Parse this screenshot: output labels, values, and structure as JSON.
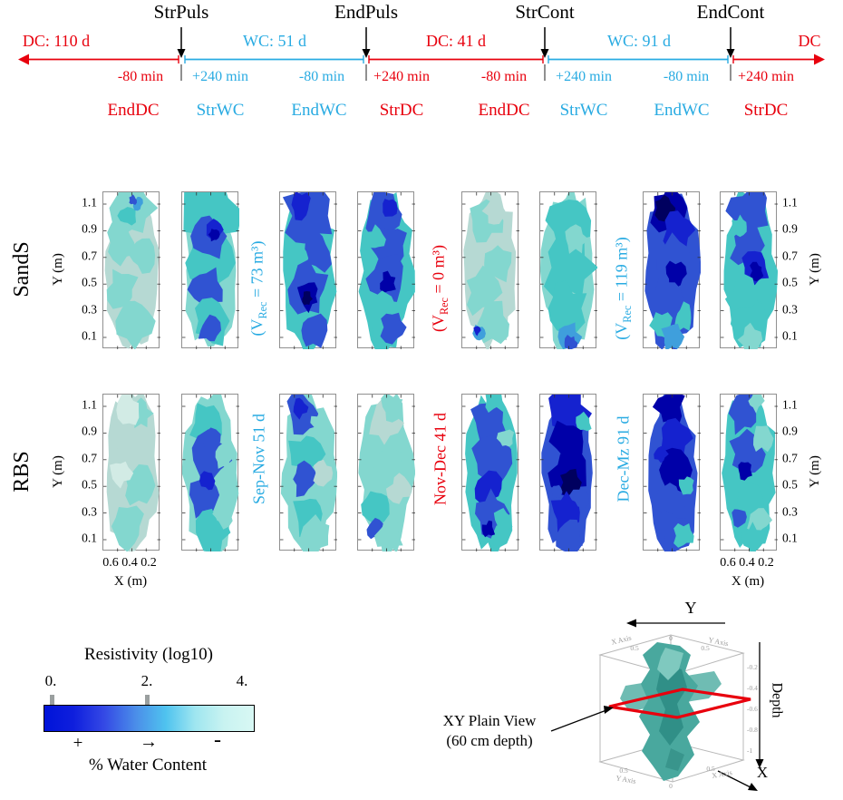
{
  "colors": {
    "red": "#e8000d",
    "cyan": "#29abe2",
    "black": "#000000",
    "palette": [
      "#00005f",
      "#0000a8",
      "#1522cf",
      "#3053d2",
      "#3f9fdc",
      "#45c6c4",
      "#83d7cf",
      "#b6d9d3",
      "#d2ebe5"
    ]
  },
  "timeline": {
    "events": [
      "StrPuls",
      "EndPuls",
      "StrCont",
      "EndCont"
    ],
    "periods": [
      {
        "label": "DC: 110 d",
        "color": "red"
      },
      {
        "label": "WC: 51 d",
        "color": "cyan"
      },
      {
        "label": "DC: 41 d",
        "color": "red"
      },
      {
        "label": "WC: 91 d",
        "color": "cyan"
      },
      {
        "label": "DC",
        "color": "red"
      }
    ],
    "offsets": [
      {
        "label": "-80 min",
        "color": "red"
      },
      {
        "label": "+240 min",
        "color": "cyan"
      },
      {
        "label": "-80 min",
        "color": "cyan"
      },
      {
        "label": "+240 min",
        "color": "red"
      },
      {
        "label": "-80 min",
        "color": "red"
      },
      {
        "label": "+240 min",
        "color": "cyan"
      },
      {
        "label": "-80 min",
        "color": "cyan"
      },
      {
        "label": "+240 min",
        "color": "red"
      }
    ],
    "states": [
      {
        "label": "EndDC",
        "color": "red"
      },
      {
        "label": "StrWC",
        "color": "cyan"
      },
      {
        "label": "EndWC",
        "color": "cyan"
      },
      {
        "label": "StrDC",
        "color": "red"
      },
      {
        "label": "EndDC",
        "color": "red"
      },
      {
        "label": "StrWC",
        "color": "cyan"
      },
      {
        "label": "EndWC",
        "color": "cyan"
      },
      {
        "label": "StrDC",
        "color": "red"
      }
    ]
  },
  "rows": [
    "SandS",
    "RBS"
  ],
  "axes": {
    "y_label": "Y (m)",
    "y_ticks": [
      "1.1",
      "0.9",
      "0.7",
      "0.5",
      "0.3",
      "0.1"
    ],
    "x_label": "X (m)",
    "x_ticks": [
      "0.6",
      "0.4",
      "0.2"
    ]
  },
  "annotations": [
    {
      "vrec_open": "(V",
      "vrec_sub": "Rec",
      "vrec_rest": " = 73 m³)",
      "period": "Sep-Nov 51 d",
      "color": "cyan"
    },
    {
      "vrec_open": "(V",
      "vrec_sub": "Rec",
      "vrec_rest": " = 0 m³)",
      "period": "Nov-Dec 41 d",
      "color": "red"
    },
    {
      "vrec_open": "(V",
      "vrec_sub": "Rec",
      "vrec_rest": " = 119 m³)",
      "period": "Dec-Mz 91 d",
      "color": "cyan"
    }
  ],
  "colorbar": {
    "title": "Resistivity (log10)",
    "ticks": [
      "0.",
      "2.",
      "4."
    ],
    "plus": "+",
    "arrow": "→",
    "minus": "-",
    "footer": "% Water Content"
  },
  "inset3d": {
    "y_axis": "Y",
    "x_axis": "X",
    "depth": "Depth",
    "view_line1": "XY Plain View",
    "view_line2": "(60 cm depth)",
    "mini_axis_labels": [
      "X Axis",
      "Y Axis",
      "Y Axis",
      "X Axis"
    ],
    "mini_ticks_top": [
      "0.5",
      "0",
      "0.5"
    ],
    "mini_ticks_right": [
      "-0.2",
      "-0.4",
      "-0.6",
      "-0.8",
      "-1"
    ],
    "mini_ticks_bottom": [
      "0.5",
      "0",
      "0.5"
    ]
  },
  "chart_data": {
    "type": "contour-grid",
    "rows": [
      "SandS",
      "RBS"
    ],
    "column_states": [
      "EndDC",
      "StrWC",
      "EndWC",
      "StrDC",
      "EndDC",
      "StrWC",
      "EndWC",
      "StrDC"
    ],
    "column_offsets": [
      "-80 min",
      "+240 min",
      "-80 min",
      "+240 min",
      "-80 min",
      "+240 min",
      "-80 min",
      "+240 min"
    ],
    "x_range_m": [
      0.2,
      0.6
    ],
    "y_range_m": [
      0.1,
      1.1
    ],
    "colorbar_label": "Resistivity (log10)",
    "colorbar_range_log10": [
      0,
      4
    ],
    "recovered_volumes_m3": [
      73,
      0,
      119
    ],
    "period_days": {
      "DC1": 110,
      "WC1": 51,
      "DC2": 41,
      "WC2": 91
    },
    "panels": [
      {
        "base": 7,
        "patches": [
          [
            0.5,
            0.1,
            0.4,
            6
          ],
          [
            0.3,
            0.32,
            0.26,
            6
          ],
          [
            0.68,
            0.4,
            0.22,
            6
          ],
          [
            0.32,
            0.62,
            0.26,
            6
          ],
          [
            0.55,
            0.82,
            0.3,
            6
          ],
          [
            0.42,
            0.15,
            0.14,
            5
          ],
          [
            0.6,
            0.07,
            0.09,
            4
          ],
          [
            0.52,
            0.05,
            0.06,
            3
          ]
        ]
      },
      {
        "base": 6,
        "patches": [
          [
            0.5,
            0.12,
            0.42,
            5
          ],
          [
            0.5,
            0.45,
            0.45,
            5
          ],
          [
            0.48,
            0.28,
            0.3,
            3
          ],
          [
            0.55,
            0.24,
            0.16,
            2
          ],
          [
            0.56,
            0.27,
            0.09,
            1
          ],
          [
            0.42,
            0.62,
            0.28,
            3
          ],
          [
            0.52,
            0.82,
            0.3,
            5
          ],
          [
            0.48,
            0.88,
            0.18,
            3
          ]
        ]
      },
      {
        "base": 5,
        "patches": [
          [
            0.48,
            0.15,
            0.38,
            3
          ],
          [
            0.38,
            0.08,
            0.18,
            2
          ],
          [
            0.62,
            0.38,
            0.26,
            3
          ],
          [
            0.3,
            0.42,
            0.18,
            5
          ],
          [
            0.5,
            0.62,
            0.32,
            3
          ],
          [
            0.5,
            0.66,
            0.18,
            1
          ],
          [
            0.47,
            0.68,
            0.09,
            0
          ],
          [
            0.58,
            0.88,
            0.24,
            3
          ]
        ]
      },
      {
        "base": 5,
        "patches": [
          [
            0.46,
            0.14,
            0.34,
            3
          ],
          [
            0.56,
            0.34,
            0.28,
            3
          ],
          [
            0.3,
            0.3,
            0.16,
            5
          ],
          [
            0.5,
            0.55,
            0.32,
            3
          ],
          [
            0.52,
            0.58,
            0.13,
            1
          ],
          [
            0.42,
            0.8,
            0.28,
            5
          ],
          [
            0.6,
            0.86,
            0.2,
            3
          ],
          [
            0.54,
            0.1,
            0.12,
            2
          ]
        ]
      },
      {
        "base": 7,
        "patches": [
          [
            0.42,
            0.18,
            0.28,
            6
          ],
          [
            0.62,
            0.45,
            0.24,
            6
          ],
          [
            0.36,
            0.64,
            0.28,
            6
          ],
          [
            0.52,
            0.84,
            0.28,
            6
          ],
          [
            0.3,
            0.9,
            0.12,
            4
          ],
          [
            0.26,
            0.88,
            0.06,
            2
          ],
          [
            0.55,
            0.12,
            0.16,
            7
          ]
        ]
      },
      {
        "base": 6,
        "patches": [
          [
            0.5,
            0.18,
            0.38,
            5
          ],
          [
            0.5,
            0.48,
            0.42,
            5
          ],
          [
            0.46,
            0.74,
            0.32,
            5
          ],
          [
            0.62,
            0.3,
            0.18,
            6
          ],
          [
            0.5,
            0.92,
            0.18,
            4
          ],
          [
            0.54,
            0.96,
            0.1,
            3
          ]
        ]
      },
      {
        "base": 3,
        "patches": [
          [
            0.46,
            0.1,
            0.3,
            1
          ],
          [
            0.36,
            0.1,
            0.16,
            0
          ],
          [
            0.6,
            0.24,
            0.24,
            2
          ],
          [
            0.5,
            0.42,
            0.28,
            3
          ],
          [
            0.56,
            0.52,
            0.18,
            1
          ],
          [
            0.42,
            0.68,
            0.28,
            3
          ],
          [
            0.7,
            0.8,
            0.18,
            5
          ],
          [
            0.32,
            0.85,
            0.18,
            5
          ],
          [
            0.5,
            0.92,
            0.18,
            4
          ]
        ]
      },
      {
        "base": 5,
        "patches": [
          [
            0.5,
            0.12,
            0.32,
            3
          ],
          [
            0.46,
            0.34,
            0.28,
            3
          ],
          [
            0.6,
            0.48,
            0.22,
            2
          ],
          [
            0.63,
            0.5,
            0.11,
            1
          ],
          [
            0.4,
            0.68,
            0.28,
            5
          ],
          [
            0.52,
            0.84,
            0.28,
            5
          ],
          [
            0.34,
            0.22,
            0.14,
            5
          ],
          [
            0.52,
            0.94,
            0.18,
            6
          ]
        ]
      },
      {
        "base": 7,
        "patches": [
          [
            0.5,
            0.28,
            0.32,
            7
          ],
          [
            0.62,
            0.58,
            0.26,
            6
          ],
          [
            0.42,
            0.84,
            0.28,
            6
          ],
          [
            0.66,
            0.12,
            0.18,
            6
          ],
          [
            0.3,
            0.5,
            0.18,
            8
          ],
          [
            0.45,
            0.1,
            0.2,
            8
          ]
        ]
      },
      {
        "base": 6,
        "patches": [
          [
            0.42,
            0.18,
            0.28,
            5
          ],
          [
            0.46,
            0.42,
            0.32,
            3
          ],
          [
            0.42,
            0.64,
            0.28,
            3
          ],
          [
            0.5,
            0.3,
            0.18,
            3
          ],
          [
            0.46,
            0.55,
            0.13,
            2
          ],
          [
            0.72,
            0.4,
            0.16,
            6
          ],
          [
            0.52,
            0.88,
            0.26,
            5
          ],
          [
            0.72,
            0.76,
            0.16,
            6
          ]
        ]
      },
      {
        "base": 6,
        "patches": [
          [
            0.4,
            0.12,
            0.26,
            3
          ],
          [
            0.34,
            0.08,
            0.13,
            2
          ],
          [
            0.46,
            0.38,
            0.28,
            5
          ],
          [
            0.42,
            0.54,
            0.22,
            3
          ],
          [
            0.52,
            0.76,
            0.28,
            5
          ],
          [
            0.76,
            0.5,
            0.16,
            7
          ],
          [
            0.62,
            0.9,
            0.22,
            6
          ],
          [
            0.7,
            0.18,
            0.14,
            6
          ]
        ]
      },
      {
        "base": 6,
        "patches": [
          [
            0.46,
            0.18,
            0.28,
            7
          ],
          [
            0.52,
            0.44,
            0.28,
            6
          ],
          [
            0.32,
            0.7,
            0.22,
            5
          ],
          [
            0.3,
            0.86,
            0.13,
            3
          ],
          [
            0.72,
            0.6,
            0.18,
            7
          ],
          [
            0.56,
            0.9,
            0.22,
            6
          ],
          [
            0.6,
            0.08,
            0.18,
            6
          ]
        ]
      },
      {
        "base": 5,
        "patches": [
          [
            0.46,
            0.18,
            0.32,
            3
          ],
          [
            0.52,
            0.44,
            0.32,
            3
          ],
          [
            0.46,
            0.6,
            0.22,
            2
          ],
          [
            0.5,
            0.76,
            0.26,
            3
          ],
          [
            0.46,
            0.86,
            0.1,
            1
          ],
          [
            0.76,
            0.28,
            0.13,
            6
          ],
          [
            0.72,
            0.8,
            0.15,
            5
          ],
          [
            0.55,
            0.04,
            0.14,
            5
          ]
        ]
      },
      {
        "base": 3,
        "patches": [
          [
            0.5,
            0.12,
            0.32,
            2
          ],
          [
            0.46,
            0.3,
            0.26,
            1
          ],
          [
            0.5,
            0.5,
            0.28,
            1
          ],
          [
            0.52,
            0.56,
            0.16,
            0
          ],
          [
            0.46,
            0.75,
            0.26,
            2
          ],
          [
            0.52,
            0.9,
            0.22,
            3
          ],
          [
            0.76,
            0.18,
            0.13,
            5
          ],
          [
            0.28,
            0.62,
            0.1,
            3
          ],
          [
            0.72,
            0.66,
            0.13,
            3
          ]
        ]
      },
      {
        "base": 3,
        "patches": [
          [
            0.46,
            0.08,
            0.24,
            1
          ],
          [
            0.56,
            0.28,
            0.24,
            2
          ],
          [
            0.5,
            0.48,
            0.28,
            1
          ],
          [
            0.46,
            0.68,
            0.24,
            3
          ],
          [
            0.52,
            0.86,
            0.24,
            3
          ],
          [
            0.76,
            0.58,
            0.13,
            5
          ],
          [
            0.7,
            0.9,
            0.16,
            5
          ],
          [
            0.3,
            0.38,
            0.11,
            2
          ]
        ]
      },
      {
        "base": 5,
        "patches": [
          [
            0.42,
            0.12,
            0.26,
            3
          ],
          [
            0.46,
            0.38,
            0.28,
            3
          ],
          [
            0.42,
            0.48,
            0.13,
            1
          ],
          [
            0.52,
            0.7,
            0.28,
            5
          ],
          [
            0.72,
            0.28,
            0.16,
            6
          ],
          [
            0.66,
            0.8,
            0.2,
            6
          ],
          [
            0.56,
            0.92,
            0.18,
            5
          ],
          [
            0.3,
            0.78,
            0.13,
            3
          ],
          [
            0.62,
            0.04,
            0.13,
            6
          ]
        ]
      }
    ]
  }
}
